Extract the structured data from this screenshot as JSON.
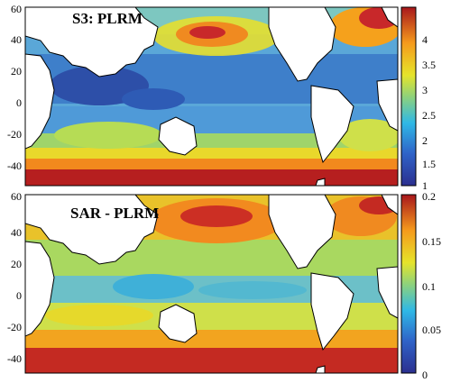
{
  "panels": [
    {
      "title": "S3: PLRM",
      "y_ticks": [
        "60",
        "40",
        "20",
        "0",
        "-20",
        "-40"
      ],
      "colorbar_ticks": [
        "4",
        "3.5",
        "3",
        "2.5",
        "2",
        "1.5",
        "1"
      ],
      "colorbar_range": [
        1,
        4
      ]
    },
    {
      "title": "SAR - PLRM",
      "y_ticks": [
        "60",
        "40",
        "20",
        "0",
        "-20",
        "-40"
      ],
      "colorbar_ticks": [
        "0.2",
        "0.15",
        "0.1",
        "0.05",
        "0"
      ],
      "colorbar_range": [
        0,
        0.2
      ]
    }
  ],
  "colormap": "jet",
  "land_color": "#ffffff",
  "coastline_color": "#000000"
}
